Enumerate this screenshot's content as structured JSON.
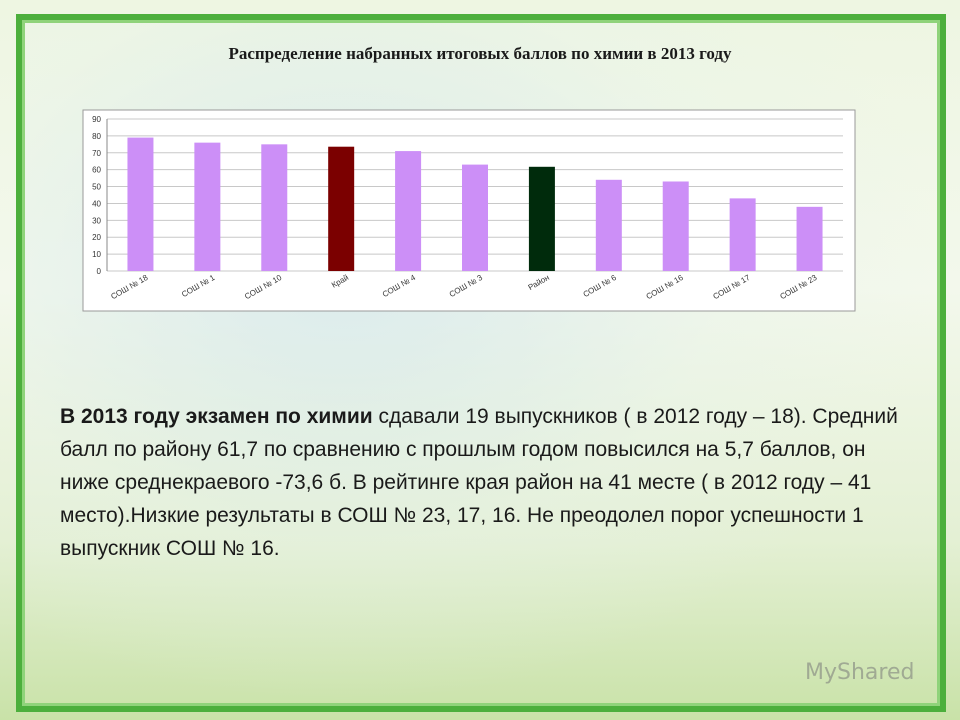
{
  "chart_data": {
    "type": "bar",
    "title": "Распределение набранных итоговых баллов по химии в 2013 году",
    "categories": [
      "СОШ № 18",
      "СОШ № 1",
      "СОШ № 10",
      "Край",
      "СОШ № 4",
      "СОШ № 3",
      "Район",
      "СОШ № 6",
      "СОШ № 16",
      "СОШ № 17",
      "СОШ № 23"
    ],
    "values": [
      79,
      76,
      75,
      73.6,
      71,
      63,
      61.7,
      54,
      53,
      43,
      38
    ],
    "colors": [
      "#cc8ff7",
      "#cc8ff7",
      "#cc8ff7",
      "#7b0000",
      "#cc8ff7",
      "#cc8ff7",
      "#002b0c",
      "#cc8ff7",
      "#cc8ff7",
      "#cc8ff7",
      "#cc8ff7"
    ],
    "ylim": [
      0,
      90
    ],
    "yticks": [
      0,
      10,
      20,
      30,
      40,
      50,
      60,
      70,
      80,
      90
    ],
    "grid": true
  },
  "paragraph": [
    {
      "text": "В 2013 году экзамен по  химии",
      "bold": true
    },
    {
      "text": " сдавали 19 выпускников ( в 2012 году – 18).  Средний балл по району  61,7  по сравнению с прошлым годом повысился на 5,7  баллов, он ниже среднекраевого -73,6 б. В рейтинге края район на  41 месте ( в 2012 году – 41 место).Низкие результаты  в СОШ № 23, 17, 16. Не преодолел  порог  успешности 1 выпускник СОШ № 16.",
      "bold": false
    }
  ],
  "watermark": "MyShared"
}
